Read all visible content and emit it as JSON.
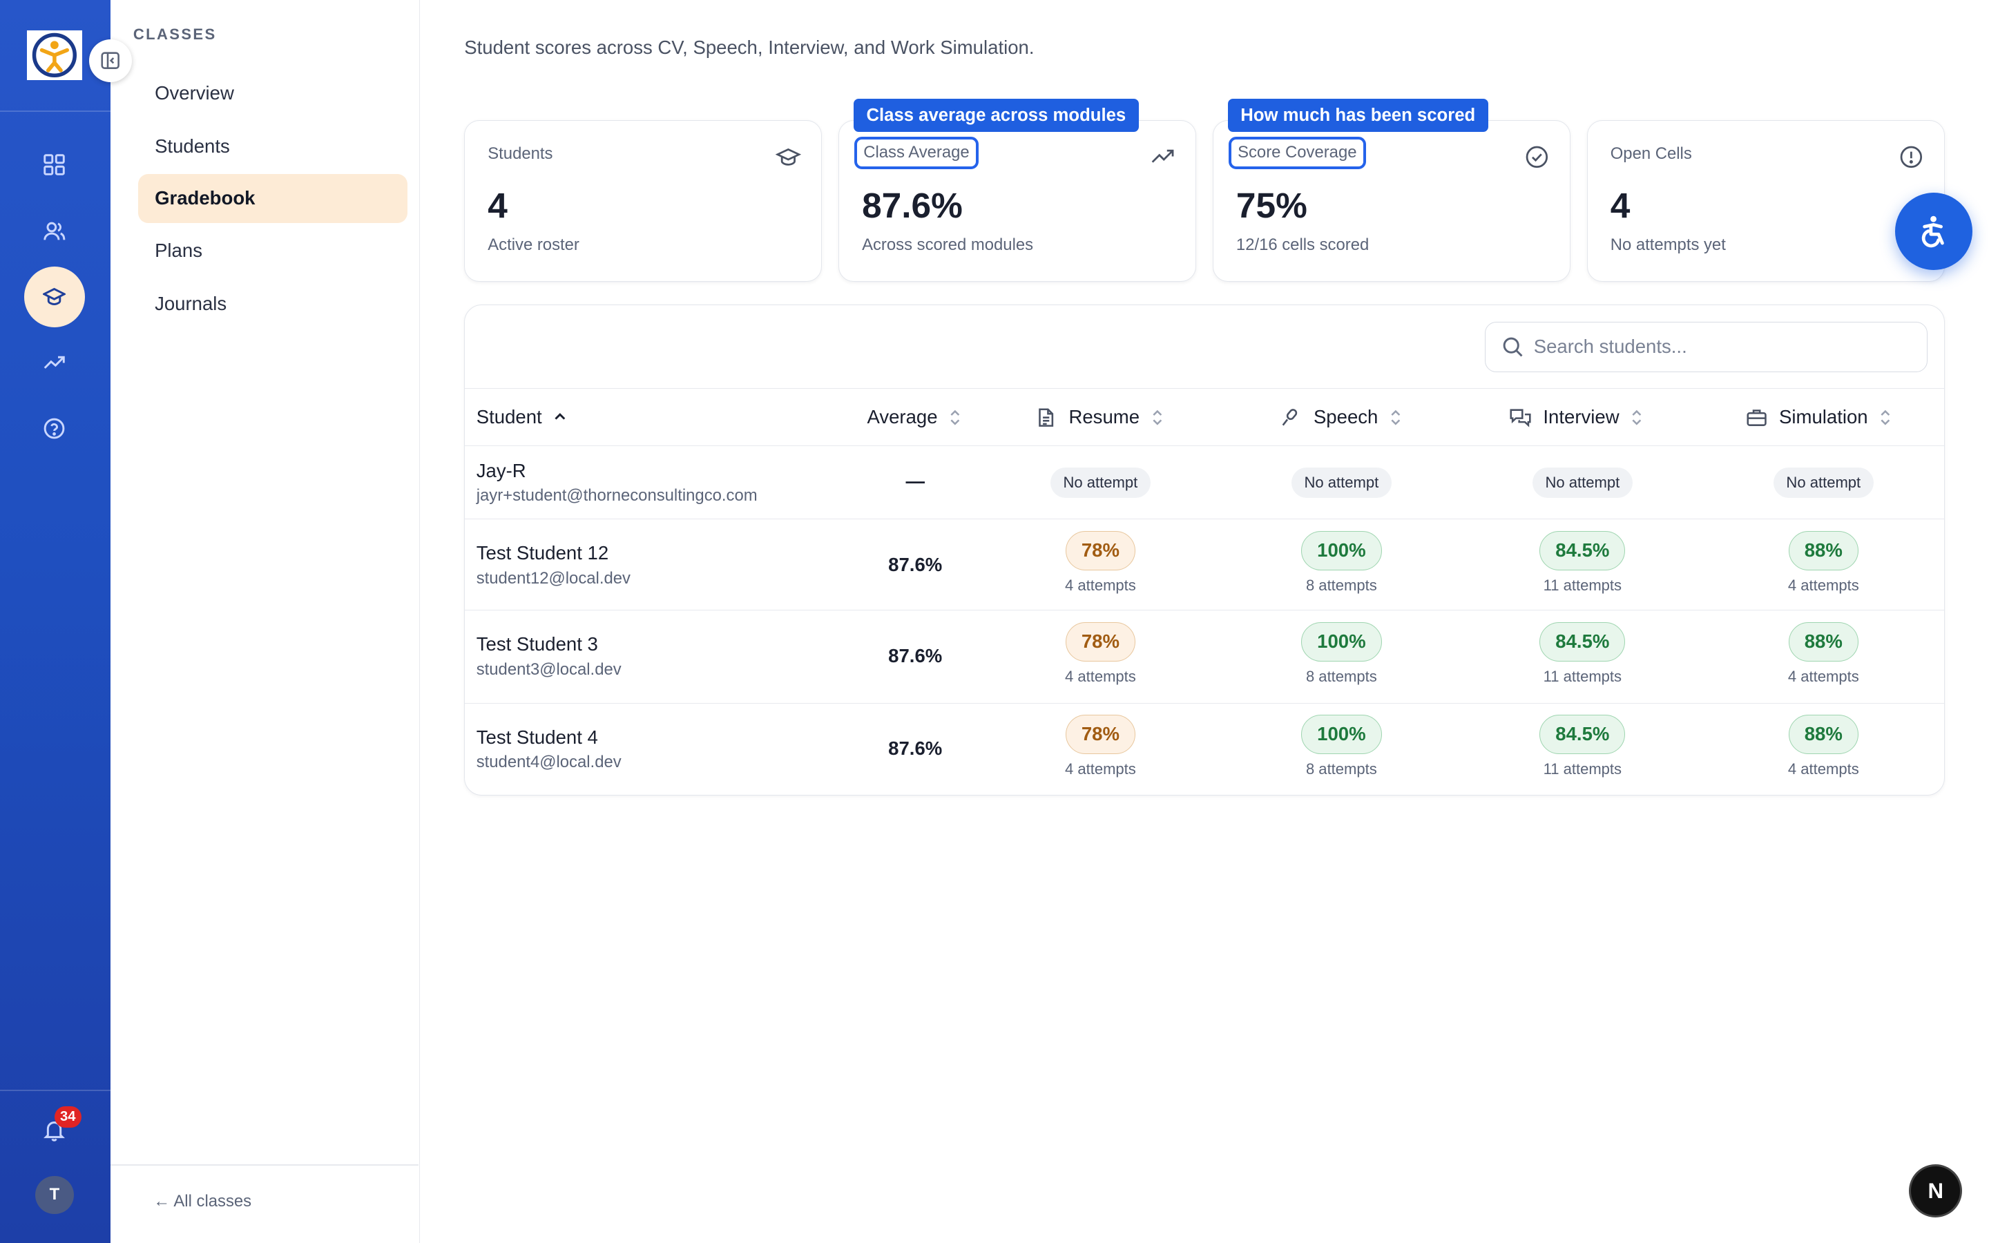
{
  "sidebar": {
    "heading": "CLASSES",
    "items": [
      {
        "label": "Overview",
        "active": false
      },
      {
        "label": "Students",
        "active": false
      },
      {
        "label": "Gradebook",
        "active": true
      },
      {
        "label": "Plans",
        "active": false
      },
      {
        "label": "Journals",
        "active": false
      }
    ],
    "back_link": "← All classes"
  },
  "rail": {
    "icons": [
      "dashboard-icon",
      "users-icon",
      "graduation-cap-icon",
      "trending-up-icon",
      "help-icon"
    ],
    "active_icon": "graduation-cap-icon",
    "notification_count": "34",
    "avatar_initial": "T"
  },
  "main": {
    "subtitle": "Student scores across CV, Speech, Interview, and Work Simulation."
  },
  "stats": [
    {
      "label": "Students",
      "value": "4",
      "sub": "Active roster",
      "icon": "graduation-cap-icon"
    },
    {
      "label": "Class Average",
      "value": "87.6%",
      "sub": "Across scored modules",
      "icon": "trending-up-icon",
      "tooltip": "Class average across modules"
    },
    {
      "label": "Score Coverage",
      "value": "75%",
      "sub": "12/16 cells scored",
      "icon": "check-circle-icon",
      "tooltip": "How much has been scored"
    },
    {
      "label": "Open Cells",
      "value": "4",
      "sub": "No attempts yet",
      "icon": "alert-circle-icon"
    }
  ],
  "table": {
    "search_placeholder": "Search students...",
    "columns": {
      "student": "Student",
      "average": "Average",
      "resume": "Resume",
      "speech": "Speech",
      "interview": "Interview",
      "simulation": "Simulation"
    },
    "no_attempt_label": "No attempt",
    "rows": [
      {
        "name": "Jay-R",
        "email": "jayr+student@thorneconsultingco.com",
        "average": "—",
        "resume": {
          "score": "",
          "attempts": ""
        },
        "speech": {
          "score": "",
          "attempts": ""
        },
        "interview": {
          "score": "",
          "attempts": ""
        },
        "simulation": {
          "score": "",
          "attempts": ""
        }
      },
      {
        "name": "Test Student 12",
        "email": "student12@local.dev",
        "average": "87.6%",
        "resume": {
          "score": "78%",
          "attempts": "4 attempts"
        },
        "speech": {
          "score": "100%",
          "attempts": "8 attempts"
        },
        "interview": {
          "score": "84.5%",
          "attempts": "11 attempts"
        },
        "simulation": {
          "score": "88%",
          "attempts": "4 attempts"
        }
      },
      {
        "name": "Test Student 3",
        "email": "student3@local.dev",
        "average": "87.6%",
        "resume": {
          "score": "78%",
          "attempts": "4 attempts"
        },
        "speech": {
          "score": "100%",
          "attempts": "8 attempts"
        },
        "interview": {
          "score": "84.5%",
          "attempts": "11 attempts"
        },
        "simulation": {
          "score": "88%",
          "attempts": "4 attempts"
        }
      },
      {
        "name": "Test Student 4",
        "email": "student4@local.dev",
        "average": "87.6%",
        "resume": {
          "score": "78%",
          "attempts": "4 attempts"
        },
        "speech": {
          "score": "100%",
          "attempts": "8 attempts"
        },
        "interview": {
          "score": "84.5%",
          "attempts": "11 attempts"
        },
        "simulation": {
          "score": "88%",
          "attempts": "4 attempts"
        }
      }
    ]
  },
  "floating": {
    "accessibility_icon": "accessibility-icon",
    "dev_badge": "N"
  },
  "colors": {
    "rail": "#1f4fbf",
    "accent": "#1f62e0",
    "active_nav": "#fdebd6",
    "score_orange": "#a15c12",
    "score_green": "#1e7a3d"
  }
}
